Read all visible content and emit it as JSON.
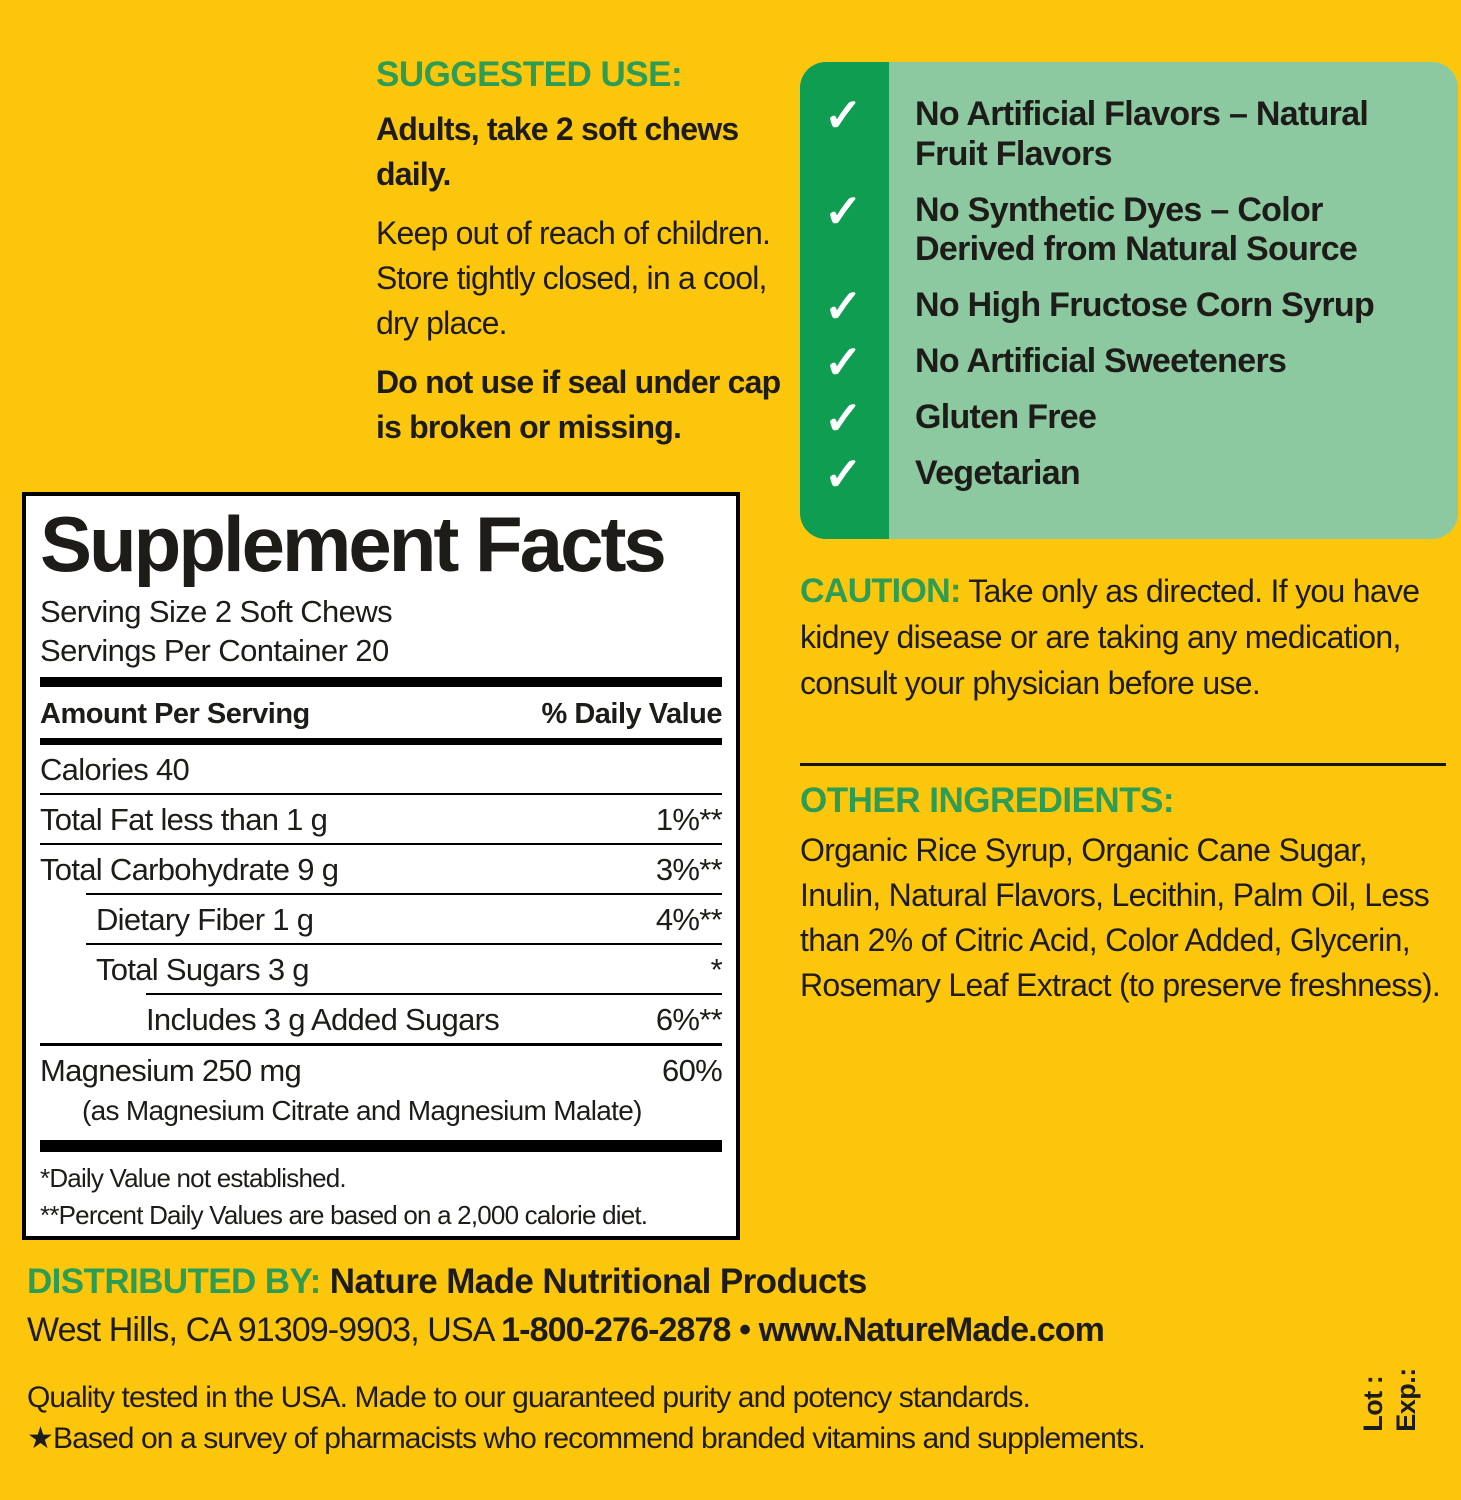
{
  "colors": {
    "background": "#FCC60D",
    "heading_green": "#2E9C52",
    "checklist_strip_green": "#0F9D51",
    "checklist_bg_green": "#8CC9A0",
    "panel_bg": "#FFFFFF",
    "text": "#1E1C18"
  },
  "suggested_use": {
    "heading": "SUGGESTED USE:",
    "para1": "Adults, take 2 soft chews daily.",
    "para2": "Keep out of reach of children. Store tightly closed, in a cool, dry place.",
    "para3": "Do not use if seal under cap is broken or missing."
  },
  "checklist": {
    "checkmark": "✓",
    "items": [
      "No Artificial Flavors – Natural Fruit Flavors",
      "No Synthetic Dyes – Color Derived from Natural Source",
      "No High Fructose Corn Syrup",
      "No Artificial Sweeteners",
      "Gluten Free",
      "Vegetarian"
    ]
  },
  "supplement_facts": {
    "title": "Supplement Facts",
    "serving_size": "Serving Size 2 Soft Chews",
    "servings_per_container": "Servings Per Container 20",
    "col_left": "Amount Per Serving",
    "col_right": "% Daily Value",
    "rows": [
      {
        "label": "Calories 40",
        "value": ""
      },
      {
        "label": "Total Fat less than 1 g",
        "value": "1%**"
      },
      {
        "label": "Total Carbohydrate 9 g",
        "value": "3%**"
      },
      {
        "label": "Dietary Fiber 1 g",
        "value": "4%**"
      },
      {
        "label": "Total Sugars 3 g",
        "value": "*"
      },
      {
        "label": "Includes 3 g Added Sugars",
        "value": "6%**"
      },
      {
        "label": "Magnesium 250 mg",
        "value": "60%"
      }
    ],
    "sub_note": "(as Magnesium Citrate and Magnesium Malate)",
    "footnote1": "*Daily Value not established.",
    "footnote2": "**Percent Daily Values are based on a 2,000 calorie diet."
  },
  "caution": {
    "label": "CAUTION:",
    "text": " Take only as directed. If you have kidney disease or are taking any medication, consult your physician before use."
  },
  "other_ingredients": {
    "heading": "OTHER INGREDIENTS:",
    "text": "Organic Rice Syrup, Organic Cane Sugar, Inulin, Natural Flavors, Lecithin, Palm Oil, Less than 2% of Citric Acid, Color Added, Glycerin, Rosemary Leaf Extract (to preserve freshness)."
  },
  "distributor": {
    "label": "DISTRIBUTED BY:",
    "name": " Nature Made Nutritional Products",
    "address": "West Hills, CA 91309-9903, USA ",
    "phone": "1-800-276-2878",
    "bullet": " • ",
    "website": "www.NatureMade.com"
  },
  "footer": {
    "line1": "Quality tested in the USA. Made to our guaranteed purity and potency standards.",
    "line2": "★Based on a survey of pharmacists who recommend branded vitamins and supplements."
  },
  "lot_exp": {
    "lot": "Lot :",
    "exp": "Exp.:"
  }
}
